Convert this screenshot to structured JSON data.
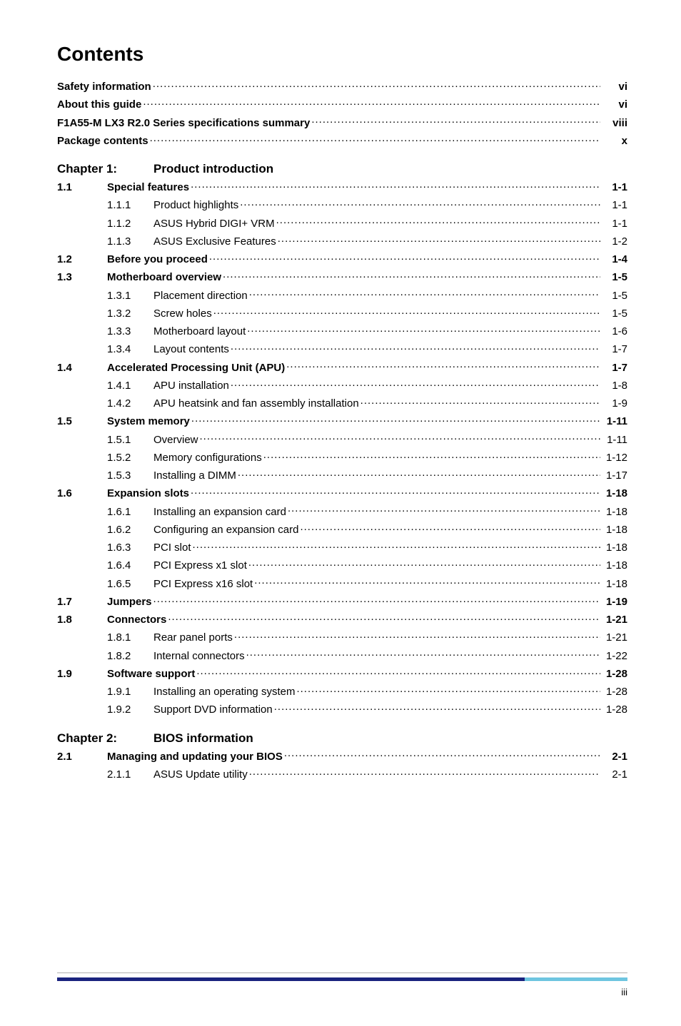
{
  "title": "Contents",
  "footer": {
    "page_number": "iii",
    "rule_color": "#b0b0b0",
    "bar_colors": {
      "blue": "#1a237e",
      "cyan": "#6ec5e0"
    }
  },
  "prelims": [
    {
      "label": "Safety information",
      "page": "vi"
    },
    {
      "label": "About this guide",
      "page": "vi"
    },
    {
      "label": "F1A55-M LX3 R2.0 Series specifications summary",
      "page": "viii"
    },
    {
      "label": "Package contents",
      "page": "x"
    }
  ],
  "chapters": [
    {
      "num": "Chapter 1:",
      "title": "Product introduction",
      "sections": [
        {
          "num": "1.1",
          "label": "Special features",
          "page": "1-1",
          "bold": true,
          "subs": [
            {
              "num": "1.1.1",
              "label": "Product highlights",
              "page": "1-1"
            },
            {
              "num": "1.1.2",
              "label": "ASUS Hybrid DIGI+ VRM",
              "page": "1-1"
            },
            {
              "num": "1.1.3",
              "label": "ASUS Exclusive Features",
              "page": "1-2"
            }
          ]
        },
        {
          "num": "1.2",
          "label": "Before you proceed",
          "page": "1-4",
          "bold": true,
          "subs": []
        },
        {
          "num": "1.3",
          "label": "Motherboard overview",
          "page": "1-5",
          "bold": true,
          "subs": [
            {
              "num": "1.3.1",
              "label": "Placement direction",
              "page": "1-5"
            },
            {
              "num": "1.3.2",
              "label": "Screw holes",
              "page": "1-5"
            },
            {
              "num": "1.3.3",
              "label": "Motherboard layout",
              "page": "1-6"
            },
            {
              "num": "1.3.4",
              "label": "Layout contents",
              "page": "1-7"
            }
          ]
        },
        {
          "num": "1.4",
          "label": "Accelerated Processing Unit (APU)",
          "page": "1-7",
          "bold": true,
          "subs": [
            {
              "num": "1.4.1",
              "label": "APU installation",
              "page": "1-8"
            },
            {
              "num": "1.4.2",
              "label": "APU heatsink and fan assembly installation",
              "page": "1-9"
            }
          ]
        },
        {
          "num": "1.5",
          "label": "System memory",
          "page": "1-11",
          "bold": true,
          "subs": [
            {
              "num": "1.5.1",
              "label": "Overview",
              "page": "1-11"
            },
            {
              "num": "1.5.2",
              "label": "Memory configurations",
              "page": "1-12"
            },
            {
              "num": "1.5.3",
              "label": "Installing a DIMM",
              "page": "1-17"
            }
          ]
        },
        {
          "num": "1.6",
          "label": "Expansion slots",
          "page": "1-18",
          "bold": true,
          "subs": [
            {
              "num": "1.6.1",
              "label": "Installing an expansion card",
              "page": "1-18"
            },
            {
              "num": "1.6.2",
              "label": "Configuring an expansion card",
              "page": "1-18"
            },
            {
              "num": "1.6.3",
              "label": "PCI slot",
              "page": "1-18"
            },
            {
              "num": "1.6.4",
              "label": "PCI Express x1 slot",
              "page": "1-18"
            },
            {
              "num": "1.6.5",
              "label": "PCI Express x16 slot",
              "page": "1-18"
            }
          ]
        },
        {
          "num": "1.7",
          "label": "Jumpers",
          "page": "1-19",
          "bold": true,
          "subs": []
        },
        {
          "num": "1.8",
          "label": "Connectors",
          "page": "1-21",
          "bold": true,
          "subs": [
            {
              "num": "1.8.1",
              "label": "Rear panel ports",
              "page": "1-21"
            },
            {
              "num": "1.8.2",
              "label": "Internal connectors",
              "page": "1-22"
            }
          ]
        },
        {
          "num": "1.9",
          "label": "Software support",
          "page": "1-28",
          "bold": true,
          "subs": [
            {
              "num": "1.9.1",
              "label": "Installing an operating system",
              "page": "1-28"
            },
            {
              "num": "1.9.2",
              "label": "Support DVD information",
              "page": "1-28"
            }
          ]
        }
      ]
    },
    {
      "num": "Chapter 2:",
      "title": "BIOS information",
      "sections": [
        {
          "num": "2.1",
          "label": "Managing and updating your BIOS",
          "page": "2-1",
          "bold": true,
          "subs": [
            {
              "num": "2.1.1",
              "label": "ASUS Update utility",
              "page": "2-1"
            }
          ]
        }
      ]
    }
  ]
}
